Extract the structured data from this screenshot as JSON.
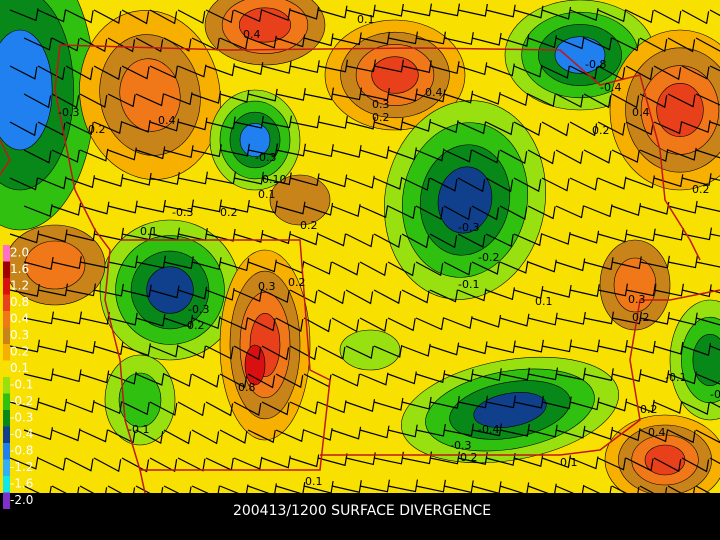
{
  "map": {
    "caption": "200413/1200 SURFACE DIVERGENCE",
    "legend": [
      {
        "label": "2.0",
        "color": "#ff6ec7"
      },
      {
        "label": "1.6",
        "color": "#a00000"
      },
      {
        "label": "1.2",
        "color": "#d81010"
      },
      {
        "label": "0.8",
        "color": "#e8401a"
      },
      {
        "label": "0.4",
        "color": "#f07818"
      },
      {
        "label": "0.3",
        "color": "#c88418"
      },
      {
        "label": "0.2",
        "color": "#f8b000"
      },
      {
        "label": "0.1",
        "color": "#f8e000"
      },
      {
        "label": "-0.1",
        "color": "#98e010"
      },
      {
        "label": "-0.2",
        "color": "#30c010"
      },
      {
        "label": "-0.3",
        "color": "#088818"
      },
      {
        "label": "-0.4",
        "color": "#10408c"
      },
      {
        "label": "-0.8",
        "color": "#2080f0"
      },
      {
        "label": "-1.2",
        "color": "#30b0f8"
      },
      {
        "label": "-1.6",
        "color": "#10e8e8"
      },
      {
        "label": "-2.0",
        "color": "#8030c8"
      }
    ],
    "contour_labels": [
      "0.4",
      "0.1",
      "0.4",
      "-0.3",
      "0.2",
      "-0.8",
      "-0.4",
      "0.3",
      "0.2",
      "0.4",
      "0.2",
      "-0.3",
      "0.10",
      "0.1",
      "0.4",
      "-0.3",
      "0.2",
      "0.2",
      "-0.3",
      "-0.2",
      "-0.1",
      "0.1",
      "0.1",
      "0.3",
      "0.2",
      "-0.3",
      "-0.2",
      "0.3",
      "0.2",
      "0.8",
      "-0.1",
      "-0.4",
      "-0.3",
      "0.2",
      "0.1",
      "0.2",
      "0.4",
      "0.1",
      "-0.1",
      "0.2",
      "-0.2"
    ]
  }
}
